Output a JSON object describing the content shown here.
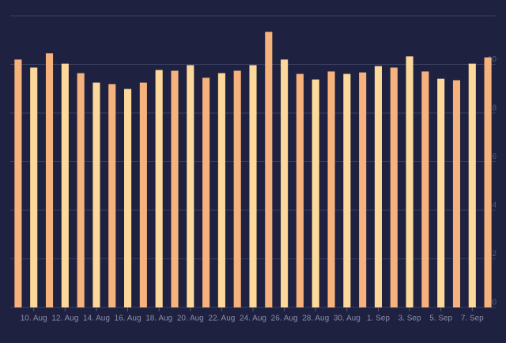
{
  "chart_data": {
    "type": "bar",
    "categories": [
      null,
      "10. Aug",
      null,
      "12. Aug",
      null,
      "14. Aug",
      null,
      "16. Aug",
      null,
      "18. Aug",
      null,
      "20. Aug",
      null,
      "22. Aug",
      null,
      "24. Aug",
      null,
      "26. Aug",
      null,
      "28. Aug",
      null,
      "30. Aug",
      null,
      "1. Sep",
      null,
      "3. Sep",
      null,
      "5. Sep",
      null,
      "7. Sep",
      null
    ],
    "values": [
      10.2,
      9.87,
      10.46,
      10.03,
      9.64,
      9.25,
      9.19,
      8.99,
      9.25,
      9.77,
      9.74,
      9.97,
      9.45,
      9.64,
      9.74,
      9.97,
      11.34,
      10.2,
      9.61,
      9.38,
      9.71,
      9.61,
      9.67,
      9.93,
      9.87,
      10.33,
      9.71,
      9.41,
      9.35,
      10.03,
      10.29
    ],
    "colors": [
      "#f6b27c",
      "#fcd99b"
    ],
    "ylim": [
      0,
      12
    ],
    "yticks": [
      0,
      2,
      4,
      6,
      8,
      10
    ],
    "grid": true
  }
}
